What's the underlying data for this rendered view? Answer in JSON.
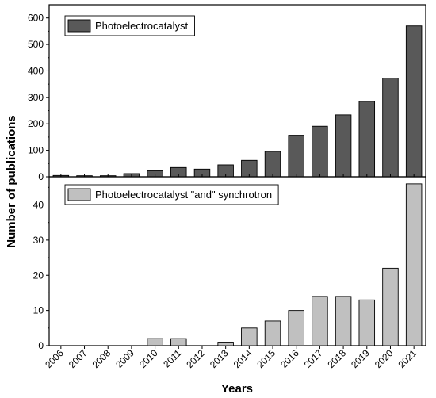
{
  "chart_data": {
    "type": "bar",
    "xlabel": "Years",
    "ylabel": "Number of publications",
    "categories": [
      "2006",
      "2007",
      "2008",
      "2009",
      "2010",
      "2011",
      "2012",
      "2013",
      "2014",
      "2015",
      "2016",
      "2017",
      "2018",
      "2019",
      "2020",
      "2021"
    ],
    "panels": [
      {
        "series_name": "Photoelectrocatalyst",
        "color": "#595959",
        "ylim": [
          0,
          650
        ],
        "yticks": [
          0,
          100,
          200,
          300,
          400,
          500,
          600
        ],
        "values": [
          5,
          4,
          4,
          12,
          23,
          35,
          29,
          45,
          62,
          96,
          157,
          191,
          234,
          285,
          373,
          570
        ]
      },
      {
        "series_name": "Photoelectrocatalyst \"and\" synchrotron",
        "color": "#c0c0c0",
        "ylim": [
          0,
          48
        ],
        "yticks": [
          0,
          10,
          20,
          30,
          40
        ],
        "values": [
          0,
          0,
          0,
          0,
          2,
          2,
          0,
          1,
          5,
          7,
          10,
          14,
          14,
          13,
          22,
          46
        ]
      }
    ],
    "grid": false,
    "legend_position": "top-left"
  }
}
